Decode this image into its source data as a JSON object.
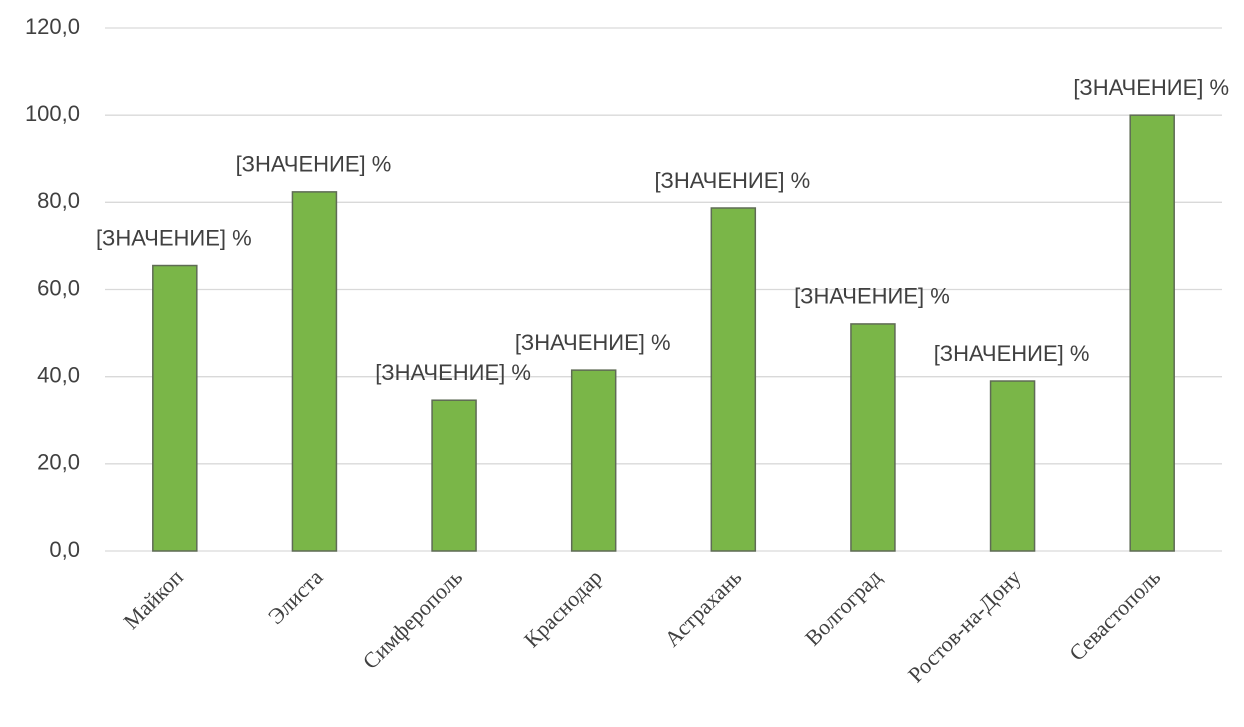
{
  "chart_data": {
    "type": "bar",
    "categories": [
      "Майкоп",
      "Элиста",
      "Симферополь",
      "Краснодар",
      "Астрахань",
      "Волгоград",
      "Ростов-на-Дону",
      "Севастополь"
    ],
    "values": [
      65.5,
      82.4,
      34.6,
      41.5,
      78.7,
      52.1,
      39.0,
      100
    ],
    "value_labels": [
      "[ЗНАЧЕНИЕ] %",
      "[ЗНАЧЕНИЕ] %",
      "[ЗНАЧЕНИЕ] %",
      "[ЗНАЧЕНИЕ] %",
      "[ЗНАЧЕНИЕ] %",
      "[ЗНАЧЕНИЕ] %",
      "[ЗНАЧЕНИЕ] %",
      "[ЗНАЧЕНИЕ] %"
    ],
    "color": "#7ab648",
    "ylim": [
      0,
      120
    ],
    "yticks": [
      {
        "value": 0,
        "label": "0,0"
      },
      {
        "value": 20,
        "label": "20,0"
      },
      {
        "value": 40,
        "label": "40,0"
      },
      {
        "value": 60,
        "label": "60,0"
      },
      {
        "value": 80,
        "label": "80,0"
      },
      {
        "value": 100,
        "label": "100,0"
      },
      {
        "value": 120,
        "label": "120,0"
      }
    ],
    "grid": true
  }
}
